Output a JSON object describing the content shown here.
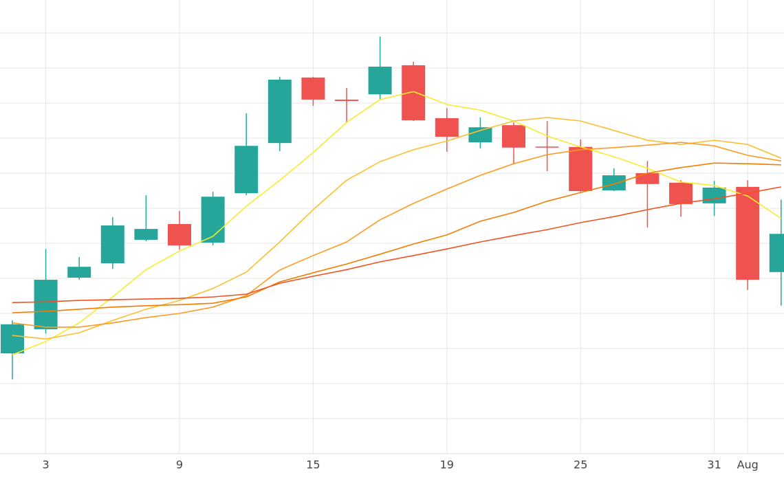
{
  "chart_data": {
    "type": "candlestick",
    "categories": [
      null,
      "3",
      null,
      null,
      null,
      "9",
      null,
      null,
      null,
      "15",
      null,
      null,
      null,
      "19",
      null,
      null,
      null,
      "25",
      null,
      null,
      null,
      "31",
      "Aug",
      null
    ],
    "open": [
      2.86,
      3.55,
      5.02,
      5.43,
      6.1,
      6.55,
      6.02,
      7.43,
      8.86,
      10.73,
      10.1,
      10.25,
      11.08,
      9.57,
      8.88,
      9.37,
      8.76,
      8.75,
      7.51,
      8.0,
      7.73,
      7.14,
      7.61,
      5.18
    ],
    "high": [
      3.8,
      5.84,
      5.61,
      6.75,
      7.37,
      6.92,
      7.47,
      9.71,
      10.75,
      10.75,
      10.43,
      11.9,
      11.18,
      9.86,
      9.59,
      9.45,
      9.49,
      8.96,
      8.14,
      8.35,
      7.8,
      7.78,
      7.8,
      7.25
    ],
    "low": [
      2.12,
      3.43,
      4.96,
      5.27,
      6.06,
      5.82,
      5.94,
      7.37,
      8.63,
      9.92,
      9.45,
      10.08,
      9.49,
      8.61,
      8.71,
      8.27,
      8.06,
      7.47,
      7.49,
      6.45,
      6.76,
      6.78,
      4.67,
      4.22
    ],
    "close": [
      3.69,
      4.96,
      5.33,
      6.51,
      6.41,
      5.94,
      7.33,
      8.78,
      10.67,
      10.1,
      10.06,
      11.04,
      9.51,
      9.04,
      9.31,
      8.73,
      8.73,
      7.49,
      7.94,
      7.69,
      7.12,
      7.59,
      4.96,
      6.27
    ],
    "up_color": "#26a69a",
    "down_color": "#ef5350",
    "series": [
      {
        "color": "#f7ec2e",
        "values": [
          2.82,
          3.2,
          3.73,
          4.47,
          5.25,
          5.78,
          6.2,
          7.06,
          7.8,
          8.59,
          9.45,
          10.1,
          10.33,
          9.96,
          9.8,
          9.49,
          9.06,
          8.75,
          8.47,
          8.14,
          7.75,
          7.65,
          7.35,
          6.71
        ]
      },
      {
        "color": "#fbc02d",
        "values": [
          3.37,
          3.27,
          3.45,
          3.8,
          4.12,
          4.37,
          4.71,
          5.18,
          6.04,
          6.96,
          7.8,
          8.33,
          8.67,
          8.92,
          9.22,
          9.49,
          9.59,
          9.49,
          9.22,
          8.94,
          8.82,
          8.94,
          8.82,
          8.43
        ]
      },
      {
        "color": "#ff9a1f",
        "values": [
          3.73,
          3.61,
          3.61,
          3.73,
          3.88,
          4.0,
          4.18,
          4.51,
          5.24,
          5.65,
          6.04,
          6.67,
          7.14,
          7.55,
          7.94,
          8.27,
          8.53,
          8.67,
          8.73,
          8.8,
          8.88,
          8.78,
          8.51,
          8.35
        ]
      },
      {
        "color": "#f57c00",
        "values": [
          4.02,
          4.06,
          4.12,
          4.18,
          4.22,
          4.25,
          4.29,
          4.47,
          4.9,
          5.16,
          5.41,
          5.69,
          5.98,
          6.24,
          6.63,
          6.88,
          7.2,
          7.45,
          7.69,
          8.0,
          8.16,
          8.29,
          8.27,
          8.24
        ]
      },
      {
        "color": "#f4511e",
        "values": [
          4.31,
          4.33,
          4.37,
          4.39,
          4.41,
          4.43,
          4.47,
          4.55,
          4.86,
          5.06,
          5.25,
          5.47,
          5.65,
          5.84,
          6.04,
          6.22,
          6.39,
          6.59,
          6.76,
          6.96,
          7.14,
          7.27,
          7.43,
          7.61
        ]
      }
    ],
    "ylim": [
      0,
      13
    ],
    "yticks": [
      1,
      2,
      3,
      4,
      5,
      6,
      7,
      8,
      9,
      10,
      11,
      12
    ],
    "grid": true
  }
}
